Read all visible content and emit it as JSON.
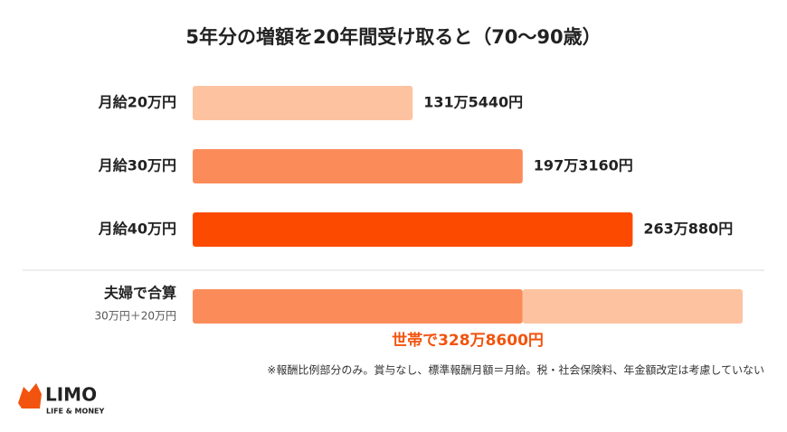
{
  "chart_data": {
    "type": "bar",
    "title": "5年分の増額を20年間受け取ると（70〜90歳）",
    "categories": [
      "月給20万円",
      "月給30万円",
      "月給40万円"
    ],
    "values": [
      1315440,
      1973160,
      2630880
    ],
    "value_labels": [
      "131万5440円",
      "197万3160円",
      "263万880円"
    ],
    "colors": [
      "#fdc3a0",
      "#fb8c5a",
      "#fc4b00"
    ],
    "combined": {
      "label": "夫婦で合算",
      "sublabel": "30万円＋20万円",
      "segments": [
        {
          "value": 1973160,
          "color": "#fb8c5a"
        },
        {
          "value": 1315440,
          "color": "#fdc3a0"
        }
      ],
      "total": 3288600,
      "total_label": "世帯で328万8600円",
      "total_color": "#f2540f"
    },
    "footnote": "※報酬比例部分のみ。賞与なし、標準報酬月額＝月給。税・社会保険料、年金額改定は考慮していない"
  },
  "logo": {
    "name": "LIMO",
    "tagline": "LIFE & MONEY"
  }
}
